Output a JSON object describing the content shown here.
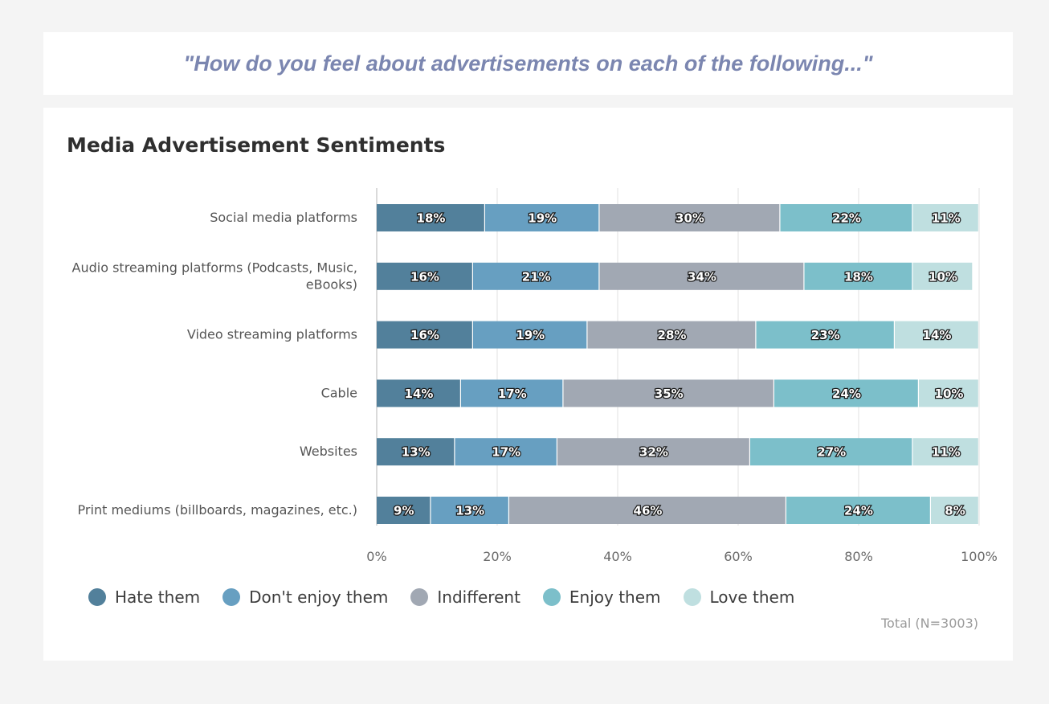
{
  "question": "\"How do you feel about advertisements on each of the following...\"",
  "chart_data": {
    "type": "bar",
    "orientation": "horizontal",
    "stacked": true,
    "title": "Media Advertisement Sentiments",
    "categories": [
      "Social media platforms",
      "Audio streaming platforms (Podcasts, Music, eBooks)",
      "Video streaming platforms",
      "Cable",
      "Websites",
      "Print mediums (billboards, magazines, etc.)"
    ],
    "category_lines": [
      [
        "Social media platforms"
      ],
      [
        "Audio streaming platforms (Podcasts, Music,",
        "eBooks)"
      ],
      [
        "Video streaming platforms"
      ],
      [
        "Cable"
      ],
      [
        "Websites"
      ],
      [
        "Print mediums (billboards, magazines, etc.)"
      ]
    ],
    "series": [
      {
        "name": "Hate them",
        "color": "#52809b",
        "values": [
          18,
          16,
          16,
          14,
          13,
          9
        ]
      },
      {
        "name": "Don't enjoy them",
        "color": "#679fc1",
        "values": [
          19,
          21,
          19,
          17,
          17,
          13
        ]
      },
      {
        "name": "Indifferent",
        "color": "#a1a8b3",
        "values": [
          30,
          34,
          28,
          35,
          32,
          46
        ]
      },
      {
        "name": "Enjoy them",
        "color": "#7cbfca",
        "values": [
          22,
          18,
          23,
          24,
          27,
          24
        ]
      },
      {
        "name": "Love them",
        "color": "#bfdfe0",
        "values": [
          11,
          10,
          14,
          10,
          11,
          8
        ]
      }
    ],
    "xlim": [
      0,
      100
    ],
    "x_ticks": [
      "0%",
      "20%",
      "40%",
      "60%",
      "80%",
      "100%"
    ],
    "value_suffix": "%",
    "grid": true,
    "legend_position": "bottom-left"
  },
  "footnote": "Total (N=3003)"
}
